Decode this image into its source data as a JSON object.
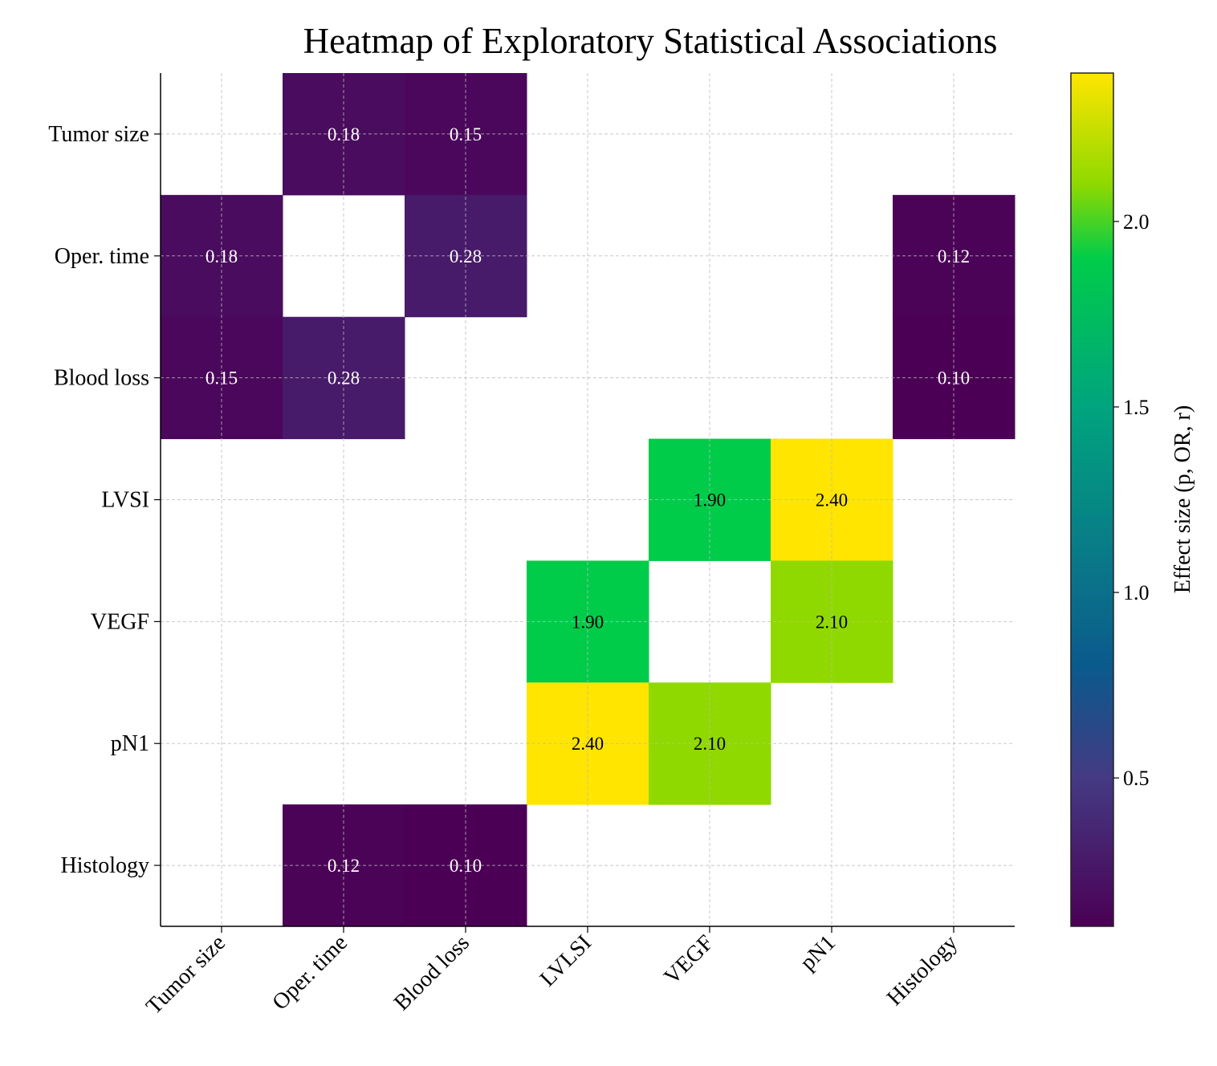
{
  "chart_data": {
    "type": "heatmap",
    "title": "Heatmap of Exploratory Statistical Associations",
    "x_categories": [
      "Tumor size",
      "Oper. time",
      "Blood loss",
      "LVLSI",
      "VEGF",
      "pN1",
      "Histology"
    ],
    "y_categories": [
      "Tumor size",
      "Oper. time",
      "Blood loss",
      "LVSI",
      "VEGF",
      "pN1",
      "Histology"
    ],
    "values": [
      [
        null,
        0.18,
        0.15,
        null,
        null,
        null,
        null
      ],
      [
        0.18,
        null,
        0.28,
        null,
        null,
        null,
        0.12
      ],
      [
        0.15,
        0.28,
        null,
        null,
        null,
        null,
        0.1
      ],
      [
        null,
        null,
        null,
        null,
        1.9,
        2.4,
        null
      ],
      [
        null,
        null,
        null,
        1.9,
        null,
        2.1,
        null
      ],
      [
        null,
        null,
        null,
        2.4,
        2.1,
        null,
        null
      ],
      [
        null,
        0.12,
        0.1,
        null,
        null,
        null,
        null
      ]
    ],
    "colorbar": {
      "label": "Effect size (p, OR, r)",
      "range": [
        0.1,
        2.4
      ],
      "ticks": [
        0.5,
        1.0,
        1.5,
        2.0
      ],
      "tick_labels": [
        "0.5",
        "1.0",
        "1.5",
        "2.0"
      ],
      "colormap_stops": [
        {
          "v": 0.1,
          "c": "#4b0055"
        },
        {
          "v": 0.5,
          "c": "#443a83"
        },
        {
          "v": 0.8,
          "c": "#0a5a8c"
        },
        {
          "v": 1.0,
          "c": "#0b6f8a"
        },
        {
          "v": 1.5,
          "c": "#00a47e"
        },
        {
          "v": 1.9,
          "c": "#00cc4a"
        },
        {
          "v": 2.1,
          "c": "#8fd900"
        },
        {
          "v": 2.4,
          "c": "#ffe500"
        }
      ]
    },
    "grid": true,
    "annotation_threshold": 1.0
  }
}
